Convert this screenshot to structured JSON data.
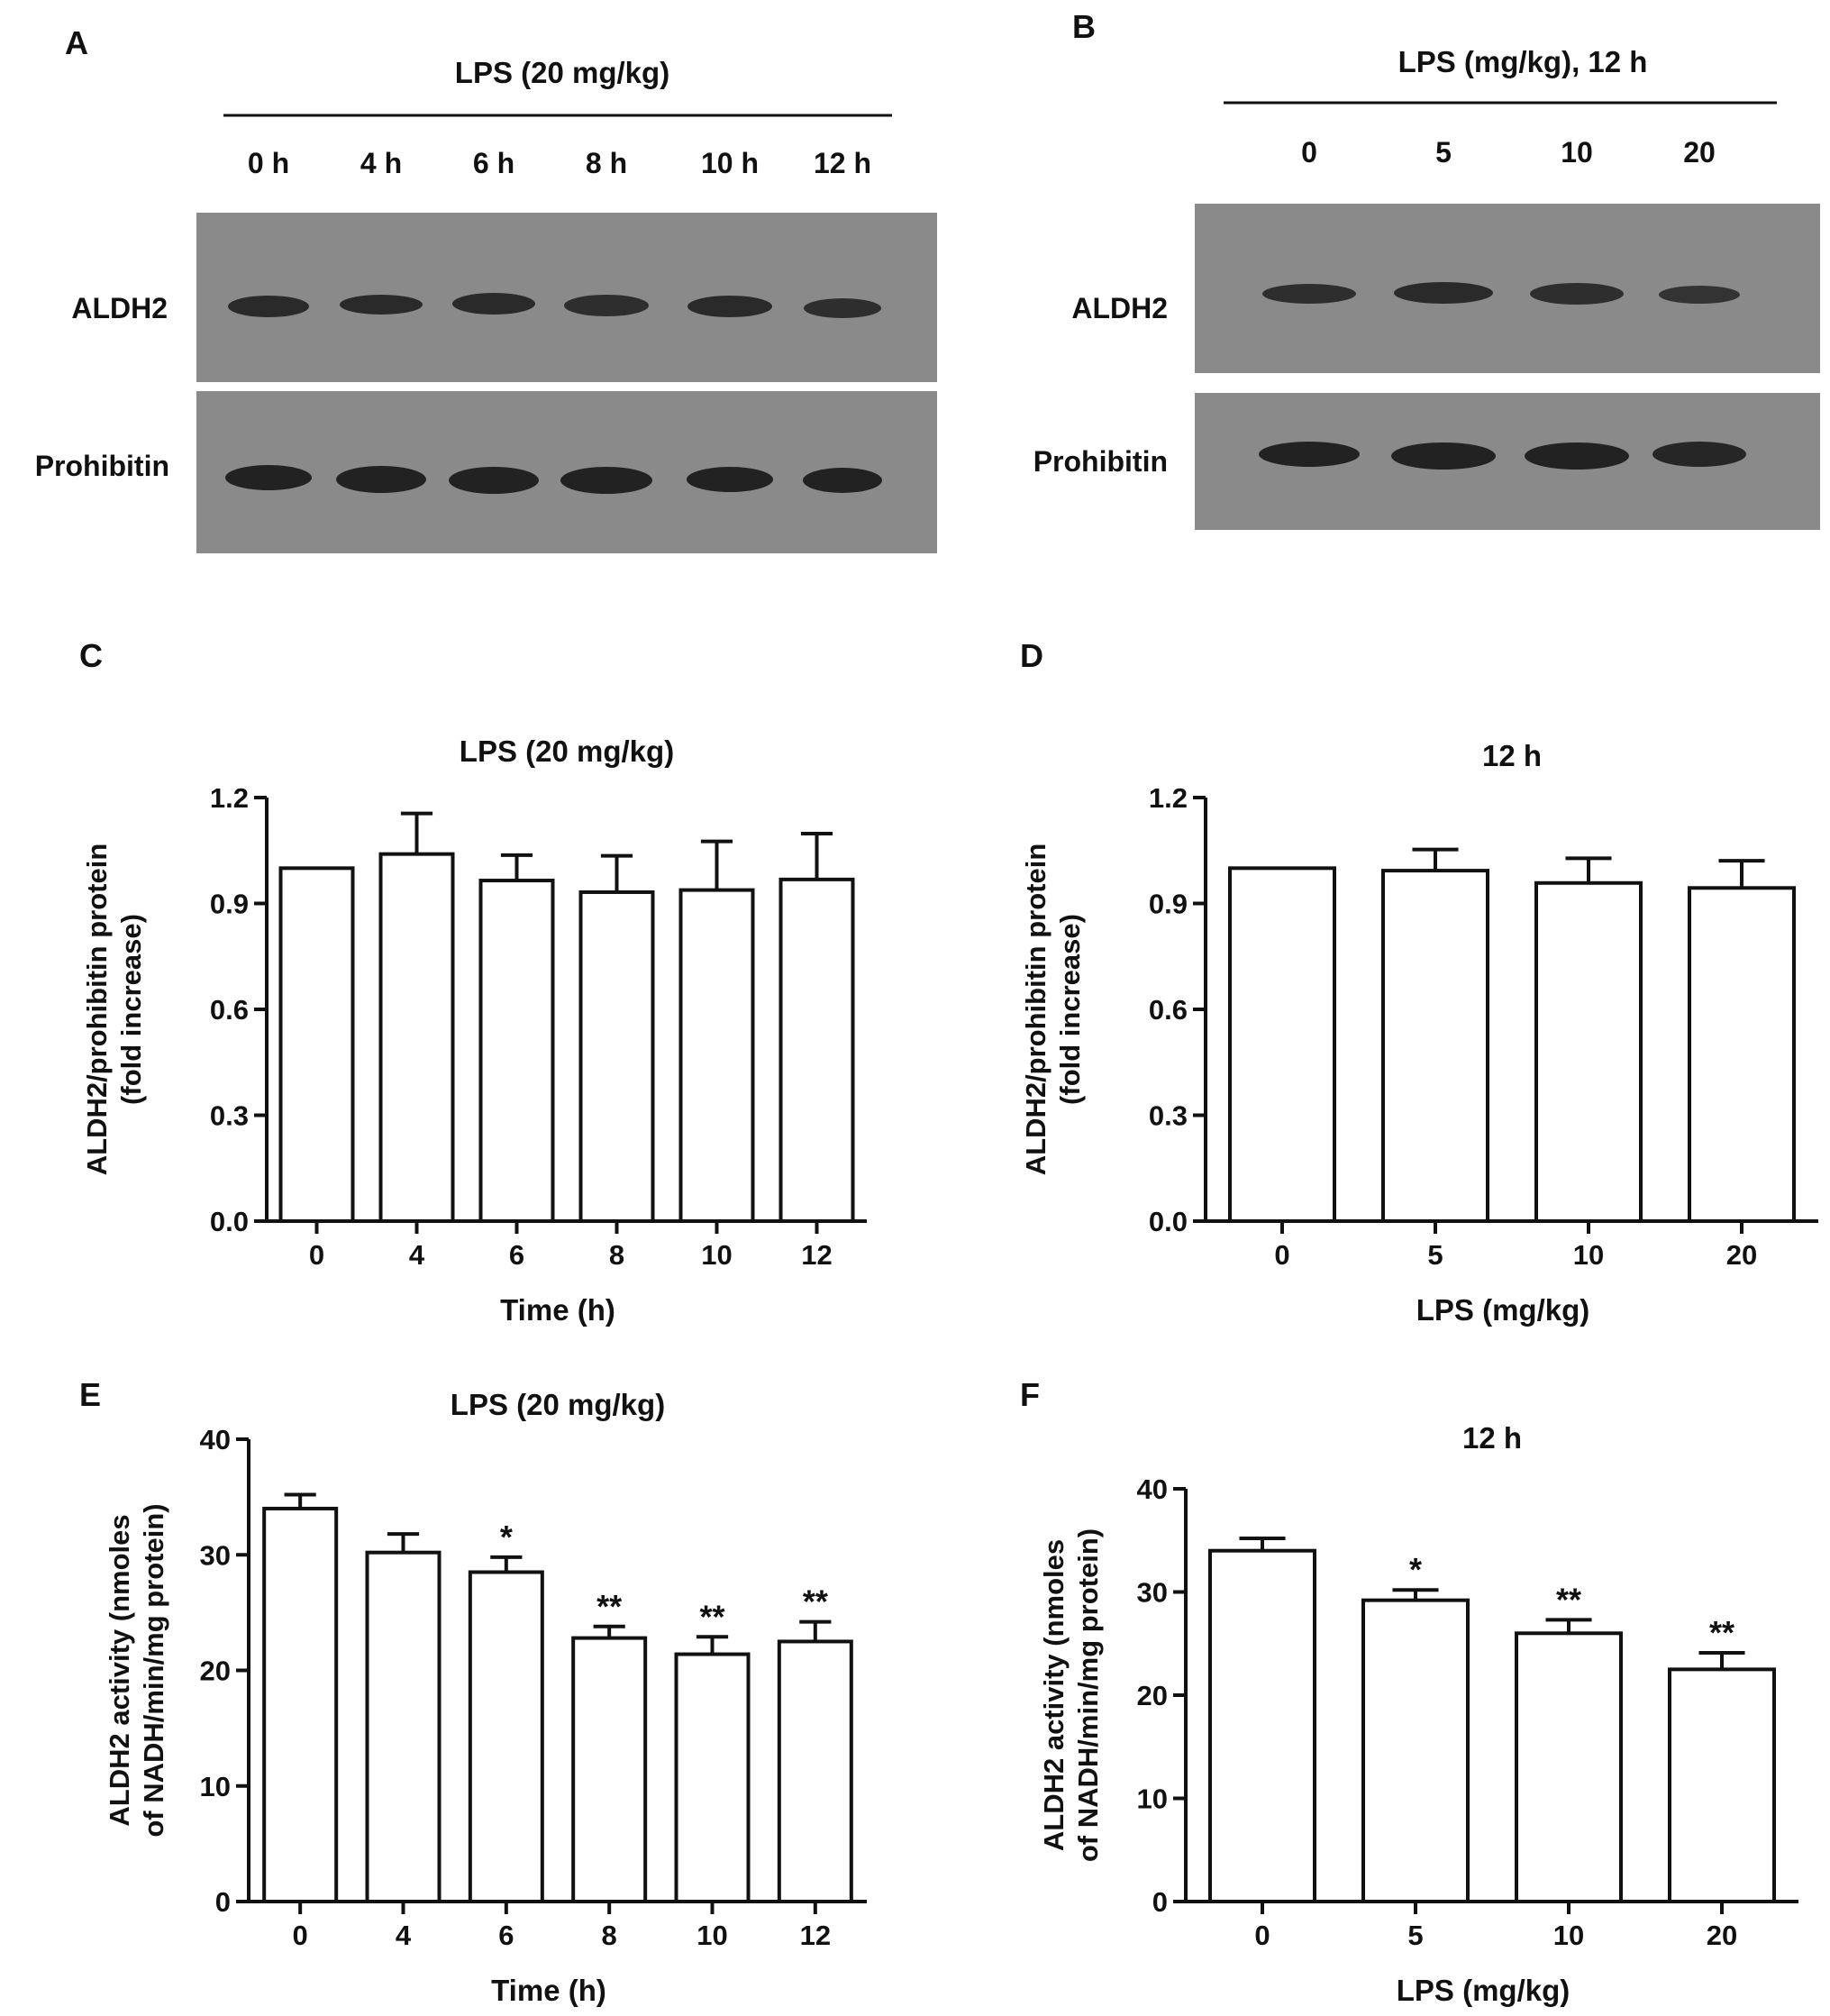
{
  "colors": {
    "ink": "#111111",
    "blot_bg": "#8a8a8a",
    "band": "#2a2a2a",
    "bar_fill": "#ffffff"
  },
  "panels": {
    "A": {
      "letter": "A",
      "header": "LPS (20 mg/kg)",
      "lanes": [
        "0 h",
        "4 h",
        "6 h",
        "8 h",
        "10 h",
        "12 h"
      ],
      "rows": [
        "ALDH2",
        "Prohibitin"
      ]
    },
    "B": {
      "letter": "B",
      "header": "LPS (mg/kg), 12 h",
      "lanes": [
        "0",
        "5",
        "10",
        "20"
      ],
      "rows": [
        "ALDH2",
        "Prohibitin"
      ]
    },
    "C": {
      "letter": "C"
    },
    "D": {
      "letter": "D"
    },
    "E": {
      "letter": "E"
    },
    "F": {
      "letter": "F"
    }
  },
  "chart_data": [
    {
      "id": "C",
      "type": "bar",
      "title": "LPS (20 mg/kg)",
      "xlabel": "Time (h)",
      "ylabel": [
        "ALDH2/prohibitin protein",
        "(fold increase)"
      ],
      "categories": [
        "0",
        "4",
        "6",
        "8",
        "10",
        "12"
      ],
      "values": [
        1.0,
        1.04,
        0.965,
        0.932,
        0.938,
        0.968
      ],
      "errors": [
        0.0,
        0.115,
        0.072,
        0.103,
        0.138,
        0.13
      ],
      "annotations": [
        "",
        "",
        "",
        "",
        "",
        ""
      ],
      "ylim": [
        0,
        1.2
      ],
      "yticks": [
        "0.0",
        "0.3",
        "0.6",
        "0.9",
        "1.2"
      ],
      "grid": false
    },
    {
      "id": "D",
      "type": "bar",
      "title": "12 h",
      "xlabel": "LPS (mg/kg)",
      "ylabel": [
        "ALDH2/prohibitin protein",
        "(fold increase)"
      ],
      "categories": [
        "0",
        "5",
        "10",
        "20"
      ],
      "values": [
        1.0,
        0.993,
        0.958,
        0.944
      ],
      "errors": [
        0.0,
        0.06,
        0.07,
        0.077
      ],
      "annotations": [
        "",
        "",
        "",
        ""
      ],
      "ylim": [
        0,
        1.2
      ],
      "yticks": [
        "0.0",
        "0.3",
        "0.6",
        "0.9",
        "1.2"
      ],
      "grid": false
    },
    {
      "id": "E",
      "type": "bar",
      "title": "LPS (20 mg/kg)",
      "xlabel": "Time (h)",
      "ylabel": [
        "ALDH2 activity (nmoles",
        "of NADH/min/mg protein)"
      ],
      "categories": [
        "0",
        "4",
        "6",
        "8",
        "10",
        "12"
      ],
      "values": [
        34.0,
        30.2,
        28.5,
        22.8,
        21.4,
        22.5
      ],
      "errors": [
        1.2,
        1.6,
        1.3,
        1.0,
        1.5,
        1.7
      ],
      "annotations": [
        "",
        "",
        "*",
        "**",
        "**",
        "**"
      ],
      "ylim": [
        0,
        40
      ],
      "yticks": [
        "0",
        "10",
        "20",
        "30",
        "40"
      ],
      "grid": false
    },
    {
      "id": "F",
      "type": "bar",
      "title": "12 h",
      "xlabel": "LPS (mg/kg)",
      "ylabel": [
        "ALDH2 activity (nmoles",
        "of NADH/min/mg protein)"
      ],
      "categories": [
        "0",
        "5",
        "10",
        "20"
      ],
      "values": [
        34.0,
        29.2,
        26.0,
        22.5
      ],
      "errors": [
        1.2,
        1.0,
        1.3,
        1.6
      ],
      "annotations": [
        "",
        "*",
        "**",
        "**"
      ],
      "ylim": [
        0,
        40
      ],
      "yticks": [
        "0",
        "10",
        "20",
        "30",
        "40"
      ],
      "grid": false
    }
  ]
}
